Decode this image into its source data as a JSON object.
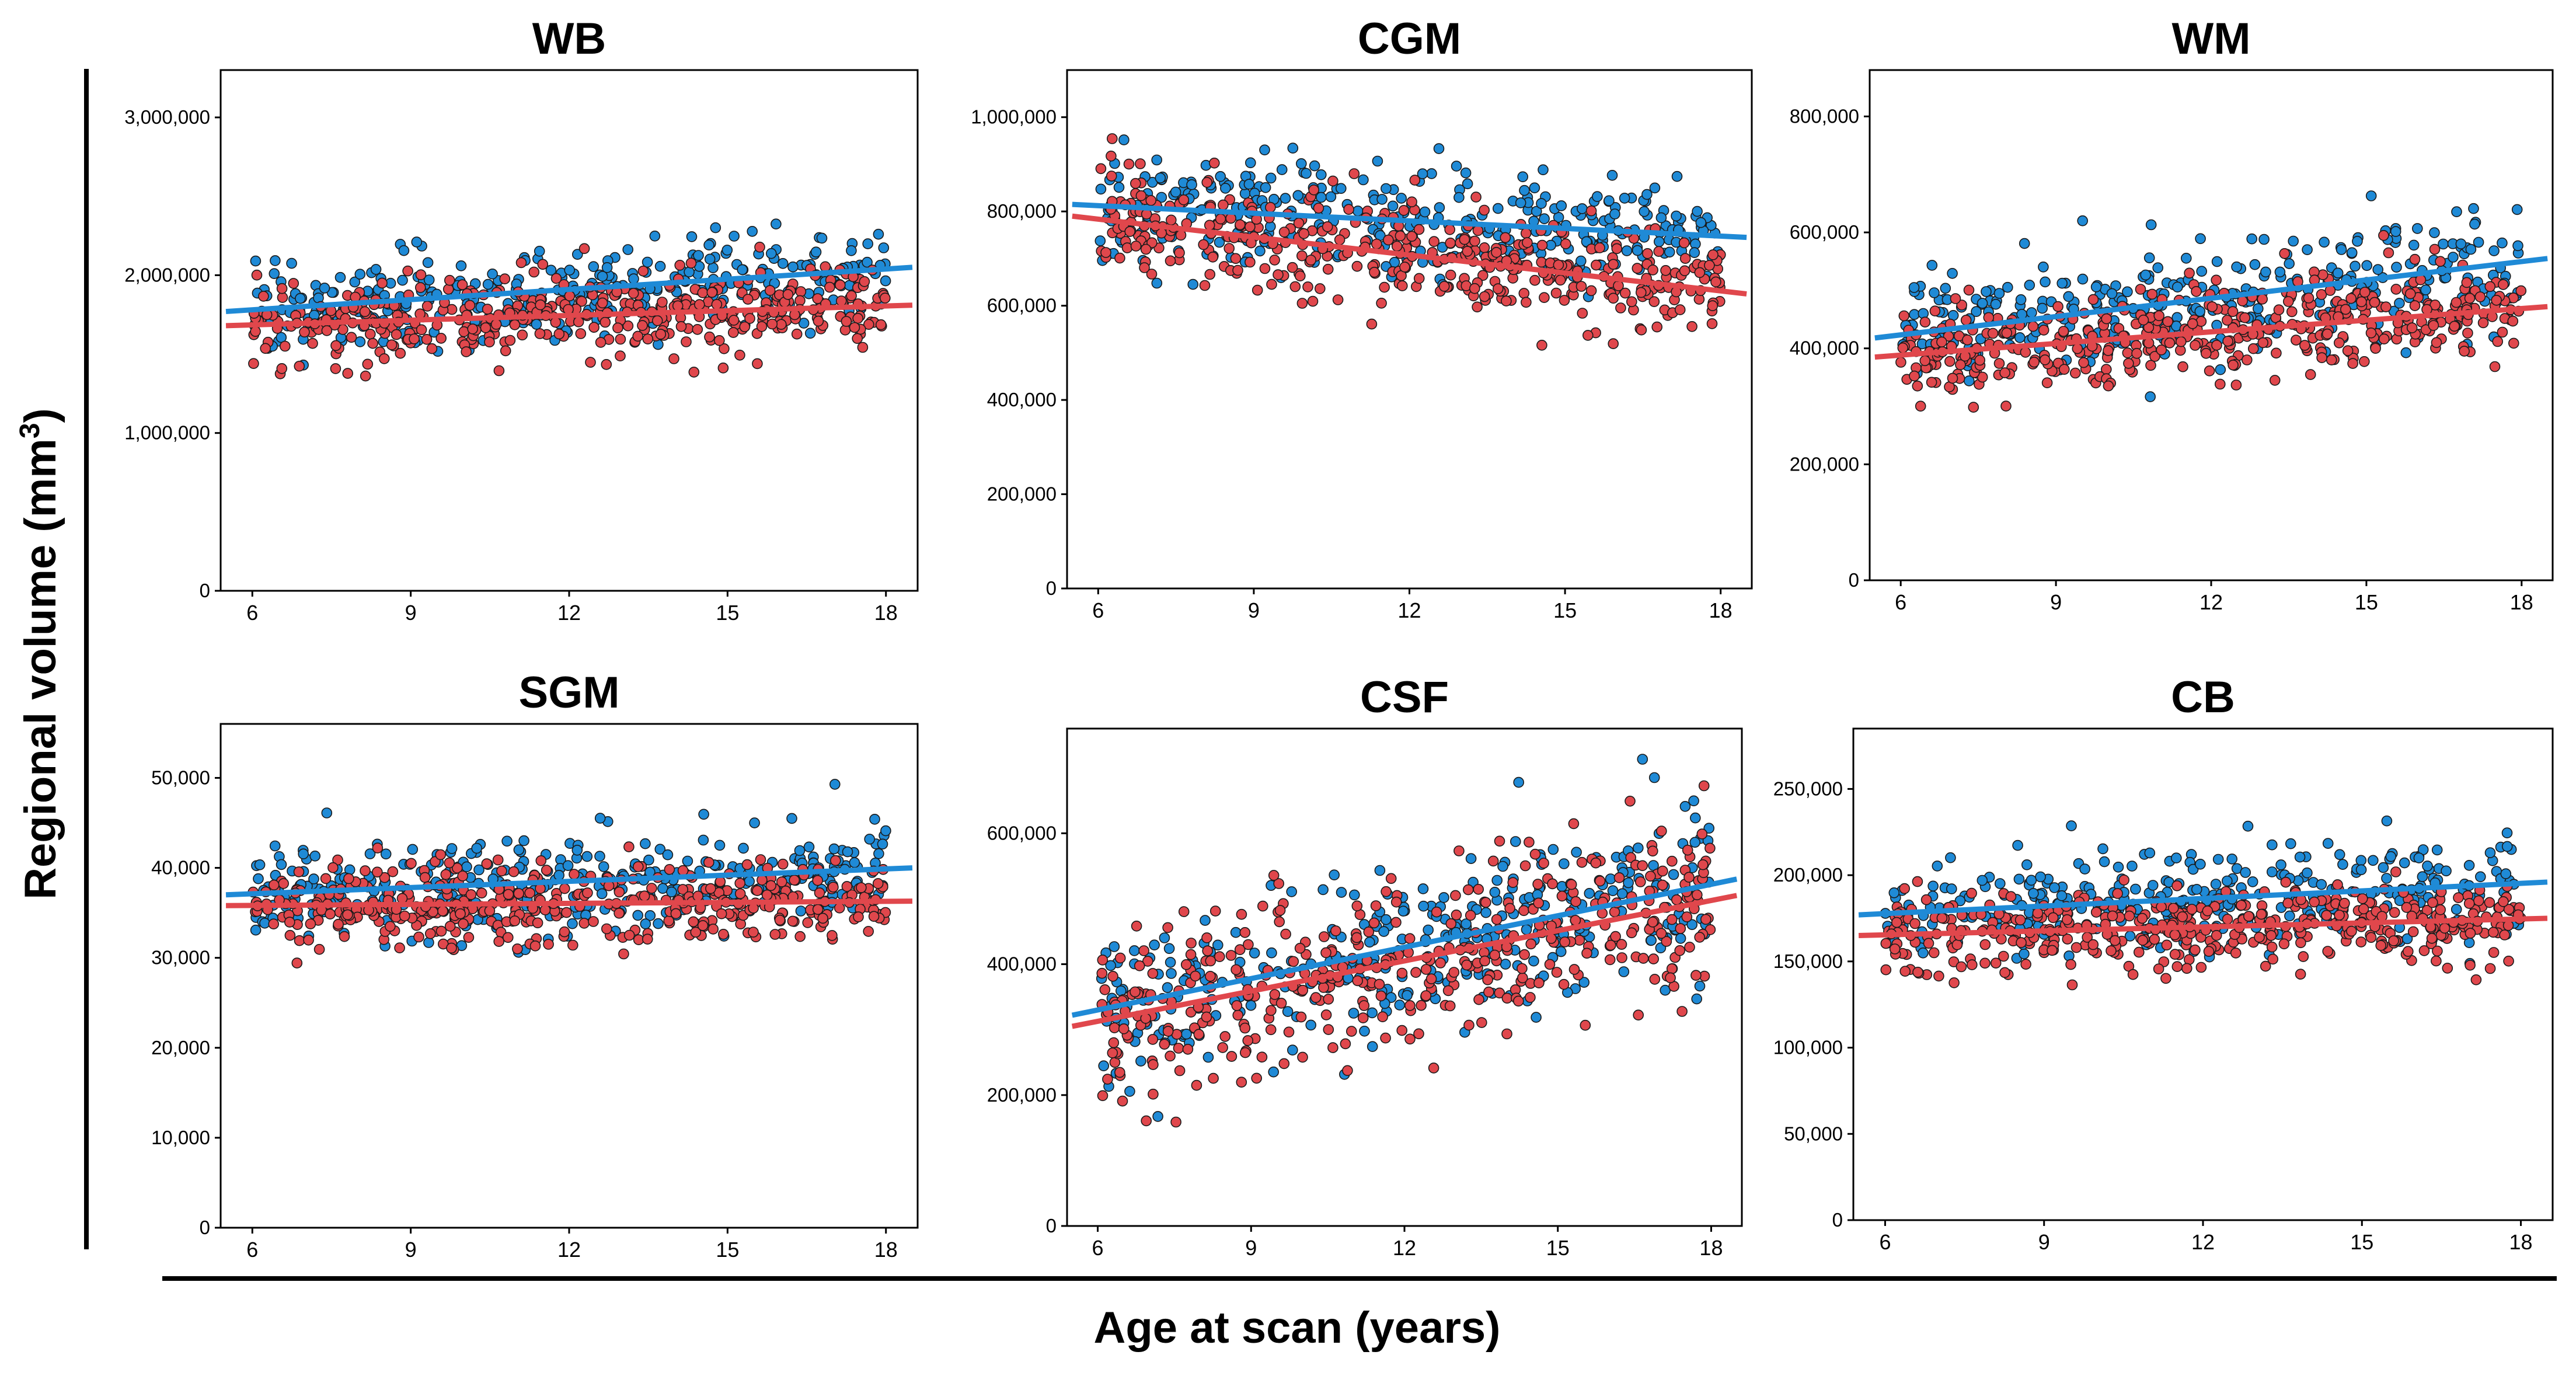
{
  "figure": {
    "ylabel_main": "Regional volume (mm",
    "ylabel_sup": "3",
    "ylabel_close": ")",
    "xlabel_main": "Age at scan (years)",
    "colors": {
      "series_a": "#1f8ad6",
      "series_b": "#e0474c",
      "point_edge": "#1a1a1a"
    }
  },
  "chart_data": [
    {
      "type": "scatter",
      "title": "WB",
      "xlim": [
        5.4,
        18.6
      ],
      "ylim": [
        0,
        3300000
      ],
      "xticks": [
        6,
        9,
        12,
        15,
        18
      ],
      "xtick_labels": [
        "6",
        "9",
        "12",
        "15",
        "18"
      ],
      "yticks": [
        0,
        1000000,
        2000000,
        3000000
      ],
      "ytick_labels": [
        "0",
        "1,000,000",
        "2,000,000",
        "3,000,000"
      ],
      "series": [
        {
          "name": "blue",
          "color": "#1f8ad6",
          "fit": {
            "x": [
              5.5,
              18.5
            ],
            "y": [
              1770000,
              2050000
            ]
          },
          "spread": 160000,
          "n": 330
        },
        {
          "name": "red",
          "color": "#e0474c",
          "fit": {
            "x": [
              5.5,
              18.5
            ],
            "y": [
              1680000,
              1810000
            ]
          },
          "spread": 130000,
          "n": 430
        }
      ]
    },
    {
      "type": "scatter",
      "title": "CGM",
      "xlim": [
        5.4,
        18.6
      ],
      "ylim": [
        0,
        1100000
      ],
      "xticks": [
        6,
        9,
        12,
        15,
        18
      ],
      "xtick_labels": [
        "6",
        "9",
        "12",
        "15",
        "18"
      ],
      "yticks": [
        0,
        200000,
        400000,
        600000,
        800000,
        1000000
      ],
      "ytick_labels": [
        "0",
        "200,000",
        "400,000",
        "600,000",
        "800,000",
        "1,000,000"
      ],
      "series": [
        {
          "name": "blue",
          "color": "#1f8ad6",
          "fit": {
            "x": [
              5.5,
              18.5
            ],
            "y": [
              815000,
              745000
            ]
          },
          "spread": 60000,
          "n": 330
        },
        {
          "name": "red",
          "color": "#e0474c",
          "fit": {
            "x": [
              5.5,
              18.5
            ],
            "y": [
              790000,
              625000
            ]
          },
          "spread": 55000,
          "n": 430
        }
      ]
    },
    {
      "type": "scatter",
      "title": "WM",
      "xlim": [
        5.4,
        18.6
      ],
      "ylim": [
        0,
        880000
      ],
      "xticks": [
        6,
        9,
        12,
        15,
        18
      ],
      "xtick_labels": [
        "6",
        "9",
        "12",
        "15",
        "18"
      ],
      "yticks": [
        0,
        200000,
        400000,
        600000,
        800000
      ],
      "ytick_labels": [
        "0",
        "200,000",
        "400,000",
        "600,000",
        "800,000"
      ],
      "series": [
        {
          "name": "blue",
          "color": "#1f8ad6",
          "fit": {
            "x": [
              5.5,
              18.5
            ],
            "y": [
              418000,
              555000
            ]
          },
          "spread": 50000,
          "n": 330
        },
        {
          "name": "red",
          "color": "#e0474c",
          "fit": {
            "x": [
              5.5,
              18.5
            ],
            "y": [
              385000,
              472000
            ]
          },
          "spread": 40000,
          "n": 430
        }
      ]
    },
    {
      "type": "scatter",
      "title": "SGM",
      "xlim": [
        5.4,
        18.6
      ],
      "ylim": [
        0,
        56000
      ],
      "xticks": [
        6,
        9,
        12,
        15,
        18
      ],
      "xtick_labels": [
        "6",
        "9",
        "12",
        "15",
        "18"
      ],
      "yticks": [
        0,
        10000,
        20000,
        30000,
        40000,
        50000
      ],
      "ytick_labels": [
        "0",
        "10,000",
        "20,000",
        "30,000",
        "40,000",
        "50,000"
      ],
      "series": [
        {
          "name": "blue",
          "color": "#1f8ad6",
          "fit": {
            "x": [
              5.5,
              18.5
            ],
            "y": [
              37000,
              40000
            ]
          },
          "spread": 2800,
          "n": 330
        },
        {
          "name": "red",
          "color": "#e0474c",
          "fit": {
            "x": [
              5.5,
              18.5
            ],
            "y": [
              35800,
              36300
            ]
          },
          "spread": 2400,
          "n": 430
        }
      ]
    },
    {
      "type": "scatter",
      "title": "CSF",
      "xlim": [
        5.4,
        18.6
      ],
      "ylim": [
        0,
        760000
      ],
      "xticks": [
        6,
        9,
        12,
        15,
        18
      ],
      "xtick_labels": [
        "6",
        "9",
        "12",
        "15",
        "18"
      ],
      "yticks": [
        0,
        200000,
        400000,
        600000
      ],
      "ytick_labels": [
        "0",
        "200,000",
        "400,000",
        "600,000"
      ],
      "series": [
        {
          "name": "blue",
          "color": "#1f8ad6",
          "fit": {
            "x": [
              5.5,
              18.5
            ],
            "y": [
              322000,
              530000
            ]
          },
          "spread": 65000,
          "n": 330
        },
        {
          "name": "red",
          "color": "#e0474c",
          "fit": {
            "x": [
              5.5,
              18.5
            ],
            "y": [
              305000,
              505000
            ]
          },
          "spread": 65000,
          "n": 430
        }
      ]
    },
    {
      "type": "scatter",
      "title": "CB",
      "xlim": [
        5.4,
        18.6
      ],
      "ylim": [
        0,
        285000
      ],
      "xticks": [
        6,
        9,
        12,
        15,
        18
      ],
      "xtick_labels": [
        "6",
        "9",
        "12",
        "15",
        "18"
      ],
      "yticks": [
        0,
        50000,
        100000,
        150000,
        200000,
        250000
      ],
      "ytick_labels": [
        "0",
        "50,000",
        "100,000",
        "150,000",
        "200,000",
        "250,000"
      ],
      "series": [
        {
          "name": "blue",
          "color": "#1f8ad6",
          "fit": {
            "x": [
              5.5,
              18.5
            ],
            "y": [
              177000,
              196000
            ]
          },
          "spread": 14000,
          "n": 330
        },
        {
          "name": "red",
          "color": "#e0474c",
          "fit": {
            "x": [
              5.5,
              18.5
            ],
            "y": [
              165000,
              175000
            ]
          },
          "spread": 12000,
          "n": 430
        }
      ]
    }
  ]
}
